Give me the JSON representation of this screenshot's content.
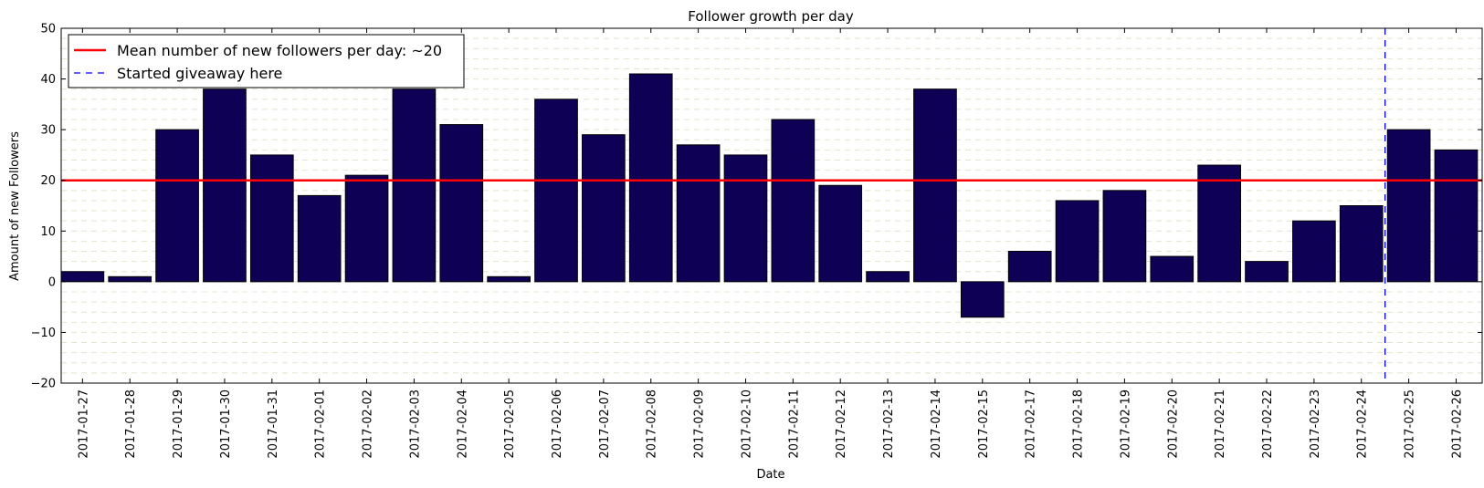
{
  "chart_data": {
    "type": "bar",
    "title": "Follower growth per day",
    "xlabel": "Date",
    "ylabel": "Amount of new Followers",
    "ylim": [
      -20,
      50
    ],
    "yticks": [
      -20,
      -10,
      0,
      10,
      20,
      30,
      40,
      50
    ],
    "grid": "horizontal dashed minor lines",
    "legend_position": "top-left",
    "bar_color": "#0e0055",
    "mean_line": {
      "label": "Mean number of new followers per day: ~20",
      "value": 20,
      "color": "#ff0000"
    },
    "giveaway_line": {
      "label": "Started giveaway here",
      "after_category": "2017-02-24",
      "color": "#0000ff"
    },
    "categories": [
      "2017-01-27",
      "2017-01-28",
      "2017-01-29",
      "2017-01-30",
      "2017-01-31",
      "2017-02-01",
      "2017-02-02",
      "2017-02-03",
      "2017-02-04",
      "2017-02-05",
      "2017-02-06",
      "2017-02-07",
      "2017-02-08",
      "2017-02-09",
      "2017-02-10",
      "2017-02-11",
      "2017-02-12",
      "2017-02-13",
      "2017-02-14",
      "2017-02-15",
      "2017-02-17",
      "2017-02-18",
      "2017-02-19",
      "2017-02-20",
      "2017-02-21",
      "2017-02-22",
      "2017-02-23",
      "2017-02-24",
      "2017-02-25",
      "2017-02-26"
    ],
    "values": [
      2,
      1,
      30,
      38,
      25,
      17,
      21,
      38,
      31,
      1,
      36,
      29,
      41,
      27,
      25,
      32,
      19,
      2,
      38,
      -7,
      6,
      16,
      18,
      5,
      23,
      4,
      12,
      15,
      30,
      26
    ]
  }
}
